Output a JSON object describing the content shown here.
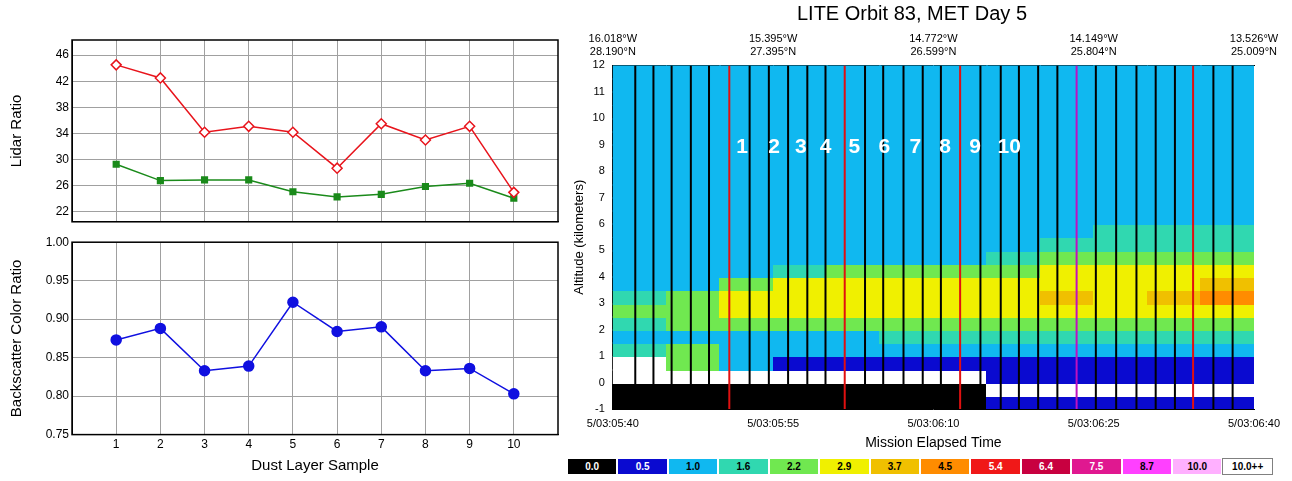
{
  "chart_data": [
    {
      "type": "line",
      "ylabel": "Lidar Ratio",
      "x": [
        1,
        2,
        3,
        4,
        5,
        6,
        7,
        8,
        9,
        10
      ],
      "xlim": [
        0,
        11
      ],
      "xticks": [
        1,
        2,
        3,
        4,
        5,
        6,
        7,
        8,
        9,
        10
      ],
      "ylim": [
        20.5,
        48.3
      ],
      "yticks": [
        22,
        26,
        30,
        34,
        38,
        42,
        46
      ],
      "grid": true,
      "tick_labels": "y",
      "series": [
        {
          "color": "#e8141c",
          "marker": "diamond_open",
          "values": [
            44.5,
            42.5,
            34.2,
            35.1,
            34.2,
            28.7,
            35.5,
            33.0,
            35.1,
            25.0
          ]
        },
        {
          "color": "#1a8a1a",
          "marker": "square",
          "values": [
            29.3,
            26.8,
            26.9,
            26.9,
            25.1,
            24.3,
            24.7,
            25.9,
            26.4,
            24.1
          ]
        }
      ]
    },
    {
      "type": "line",
      "xlabel": "Dust Layer Sample",
      "ylabel": "Backscatter Color Ratio",
      "x": [
        1,
        2,
        3,
        4,
        5,
        6,
        7,
        8,
        9,
        10
      ],
      "xlim": [
        0,
        11
      ],
      "xticks": [
        1,
        2,
        3,
        4,
        5,
        6,
        7,
        8,
        9,
        10
      ],
      "ylim": [
        0.75,
        1.0
      ],
      "yticks": [
        0.75,
        {
          "value": 0.8,
          "label": "0.80"
        },
        0.85,
        {
          "value": 0.9,
          "label": "0.90"
        },
        0.95,
        {
          "value": 1.0,
          "label": "1.00"
        }
      ],
      "grid": true,
      "series": [
        {
          "color": "#1010e0",
          "marker": "circle",
          "values": [
            0.873,
            0.888,
            0.833,
            0.839,
            0.922,
            0.884,
            0.89,
            0.833,
            0.836,
            0.803
          ]
        }
      ]
    },
    {
      "type": "heatmap",
      "title": "LITE Orbit 83, MET Day 5",
      "xlabel": "Mission Elapsed Time",
      "ylabel": "Altitude (kilometers)",
      "xlim": [
        11140,
        11200
      ],
      "xticks": [
        {
          "value": 11140,
          "label": "5/03:05:40"
        },
        {
          "value": 11155,
          "label": "5/03:05:55"
        },
        {
          "value": 11170,
          "label": "5/03:06:10"
        },
        {
          "value": 11185,
          "label": "5/03:06:25"
        },
        {
          "value": 11200,
          "label": "5/03:06:40"
        }
      ],
      "x2lim": [
        11140,
        11200
      ],
      "x2ticks": [
        {
          "value": 11140,
          "label": "16.018°W\n28.190°N"
        },
        {
          "value": 11155,
          "label": "15.395°W\n27.395°N"
        },
        {
          "value": 11170,
          "label": "14.772°W\n26.599°N"
        },
        {
          "value": 11185,
          "label": "14.149°W\n25.804°N"
        },
        {
          "value": 11200,
          "label": "13.526°W\n25.009°N"
        }
      ],
      "ylim": [
        -1,
        12
      ],
      "yticks": [
        -1,
        0,
        1,
        2,
        3,
        4,
        5,
        6,
        7,
        8,
        9,
        10,
        11,
        12
      ],
      "grid": false,
      "cells": {
        "x_edges": [
          11140,
          11145,
          11150,
          11155,
          11160,
          11165,
          11170,
          11175,
          11180,
          11185,
          11190,
          11195,
          11200
        ],
        "y_edges": [
          -1,
          -0.5,
          0,
          0.5,
          1,
          1.5,
          2,
          2.5,
          3,
          3.5,
          4,
          4.5,
          5,
          5.5,
          6,
          6.5,
          7,
          7.5,
          8,
          8.5,
          9,
          9.5,
          10,
          10.5,
          11,
          11.5,
          12
        ],
        "values": [
          [
            0.2,
            0.2,
            0.2,
            0.2,
            0.2,
            0.2,
            0.2,
            0.7,
            0.7,
            0.7,
            0.7,
            0.7
          ],
          [
            0.2,
            0.2,
            0.2,
            0.2,
            0.2,
            0.2,
            0.2,
            10.5,
            10.5,
            10.5,
            10.5,
            10.5
          ],
          [
            10.5,
            10.5,
            10.5,
            10.5,
            10.5,
            10.5,
            10.5,
            0.8,
            0.8,
            0.8,
            0.8,
            0.8
          ],
          [
            10.5,
            2.5,
            1.2,
            0.8,
            0.8,
            0.8,
            0.8,
            0.9,
            0.9,
            0.9,
            0.9,
            0.9
          ],
          [
            2.0,
            2.4,
            1.2,
            1.2,
            1.2,
            1.2,
            1.2,
            1.2,
            1.2,
            1.2,
            1.2,
            1.2
          ],
          [
            1.3,
            1.4,
            1.3,
            1.3,
            1.4,
            1.8,
            1.8,
            1.9,
            1.8,
            1.8,
            1.9,
            1.8
          ],
          [
            1.8,
            2.3,
            2.6,
            2.6,
            2.5,
            2.5,
            2.4,
            2.5,
            2.6,
            2.5,
            2.6,
            2.5
          ],
          [
            2.3,
            2.6,
            3.0,
            3.1,
            3.2,
            3.0,
            3.1,
            3.2,
            3.3,
            3.2,
            3.4,
            3.5
          ],
          [
            1.7,
            2.4,
            3.1,
            3.3,
            3.4,
            3.3,
            3.4,
            3.6,
            3.8,
            3.5,
            3.8,
            4.6
          ],
          [
            1.2,
            1.5,
            2.4,
            3.0,
            3.1,
            3.2,
            3.3,
            3.5,
            3.6,
            3.4,
            3.7,
            4.5
          ],
          [
            1.2,
            1.2,
            1.4,
            1.8,
            2.4,
            2.6,
            2.5,
            2.9,
            3.2,
            3.0,
            3.3,
            3.4
          ],
          [
            1.2,
            1.2,
            1.2,
            1.2,
            1.2,
            1.5,
            1.6,
            1.8,
            2.3,
            2.4,
            2.6,
            2.7
          ],
          [
            1.2,
            1.2,
            1.2,
            1.2,
            1.2,
            1.2,
            1.2,
            1.4,
            1.7,
            1.8,
            1.9,
            2.0
          ],
          [
            1.2,
            1.2,
            1.2,
            1.2,
            1.2,
            1.2,
            1.2,
            1.2,
            1.4,
            1.7,
            1.7,
            1.8
          ],
          [
            1.2,
            1.2,
            1.2,
            1.2,
            1.2,
            1.2,
            1.2,
            1.2,
            1.2,
            1.2,
            1.5,
            1.5
          ],
          [
            1.2,
            1.2,
            1.2,
            1.2,
            1.2,
            1.2,
            1.2,
            1.2,
            1.2,
            1.2,
            1.2,
            1.2
          ],
          [
            1.2,
            1.2,
            1.2,
            1.2,
            1.2,
            1.2,
            1.2,
            1.2,
            1.2,
            1.2,
            1.2,
            1.2
          ],
          [
            1.2,
            1.2,
            1.2,
            1.2,
            1.2,
            1.2,
            1.2,
            1.2,
            1.2,
            1.2,
            1.2,
            1.2
          ],
          [
            1.2,
            1.2,
            1.2,
            1.2,
            1.2,
            1.2,
            1.2,
            1.2,
            1.2,
            1.2,
            1.2,
            1.2
          ],
          [
            1.2,
            1.2,
            1.2,
            1.2,
            1.2,
            1.2,
            1.2,
            1.2,
            1.2,
            1.2,
            1.2,
            1.2
          ],
          [
            1.2,
            1.2,
            1.2,
            1.2,
            1.2,
            1.2,
            1.2,
            1.2,
            1.2,
            1.2,
            1.2,
            1.2
          ],
          [
            1.2,
            1.2,
            1.2,
            1.2,
            1.2,
            1.2,
            1.2,
            1.2,
            1.2,
            1.2,
            1.2,
            1.2
          ],
          [
            1.2,
            1.2,
            1.2,
            1.2,
            1.2,
            1.2,
            1.2,
            1.2,
            1.2,
            1.2,
            1.2,
            1.2
          ],
          [
            1.2,
            1.2,
            1.2,
            1.2,
            1.2,
            1.2,
            1.2,
            1.2,
            1.2,
            1.2,
            1.2,
            1.2
          ],
          [
            1.2,
            1.2,
            1.2,
            1.2,
            1.2,
            1.2,
            1.2,
            1.2,
            1.2,
            1.2,
            1.2,
            1.2
          ],
          [
            1.2,
            1.2,
            1.2,
            1.2,
            1.2,
            1.2,
            1.2,
            1.2,
            1.2,
            1.2,
            1.2,
            1.2
          ]
        ]
      },
      "colorbar": {
        "ticks": [
          {
            "value": 0,
            "label": "0.0"
          },
          0.5,
          {
            "value": 1,
            "label": "1.0"
          },
          1.6,
          2.2,
          2.9,
          3.7,
          4.5,
          5.4,
          6.4,
          7.5,
          8.7,
          {
            "value": 10,
            "label": "10.0"
          },
          {
            "value": 10,
            "label": "10.0++"
          }
        ],
        "colors": [
          "#000000",
          "#0a0ad0",
          "#10b8f0",
          "#30d8b0",
          "#70e850",
          "#f0f000",
          "#f0c000",
          "#ff8c00",
          "#f01818",
          "#c80040",
          "#e01890",
          "#ff40ff",
          "#ffb0ff",
          "#ffffff"
        ]
      },
      "profile_lines": {
        "x": [
          11142.1,
          11143.8,
          11145.5,
          11147.3,
          11149.0,
          11150.9,
          11152.8,
          11154.6,
          11156.4,
          11158.2,
          11159.9,
          11161.7,
          11163.6,
          11165.3,
          11167.2,
          11169.0,
          11170.7,
          11172.5,
          11174.4,
          11176.3,
          11178.0,
          11179.8,
          11181.6,
          11183.4,
          11185.2,
          11187.1,
          11189.0,
          11190.8,
          11192.6,
          11194.3,
          11196.2,
          11198.0
        ],
        "colors": [
          "#000000",
          "#000000",
          "#000000",
          "#000000",
          "#000000",
          "#e01010",
          "#000000",
          "#000000",
          "#000000",
          "#000000",
          "#000000",
          "#e01010",
          "#000000",
          "#000000",
          "#000000",
          "#000000",
          "#000000",
          "#e01010",
          "#000000",
          "#000000",
          "#000000",
          "#000000",
          "#000000",
          "#c010c0",
          "#000000",
          "#000000",
          "#000000",
          "#000000",
          "#000000",
          "#e01010",
          "#000000",
          "#000000"
        ]
      },
      "annotations": [
        {
          "text": "1",
          "x": 11152.1,
          "y": 8.9
        },
        {
          "text": "2",
          "x": 11155.1,
          "y": 8.9
        },
        {
          "text": "3",
          "x": 11157.6,
          "y": 8.9
        },
        {
          "text": "4",
          "x": 11159.9,
          "y": 8.9
        },
        {
          "text": "5",
          "x": 11162.6,
          "y": 8.9
        },
        {
          "text": "6",
          "x": 11165.4,
          "y": 8.9
        },
        {
          "text": "7",
          "x": 11168.3,
          "y": 8.9
        },
        {
          "text": "8",
          "x": 11171.1,
          "y": 8.9
        },
        {
          "text": "9",
          "x": 11173.9,
          "y": 8.9
        },
        {
          "text": "10",
          "x": 11177.1,
          "y": 8.9
        }
      ]
    }
  ]
}
